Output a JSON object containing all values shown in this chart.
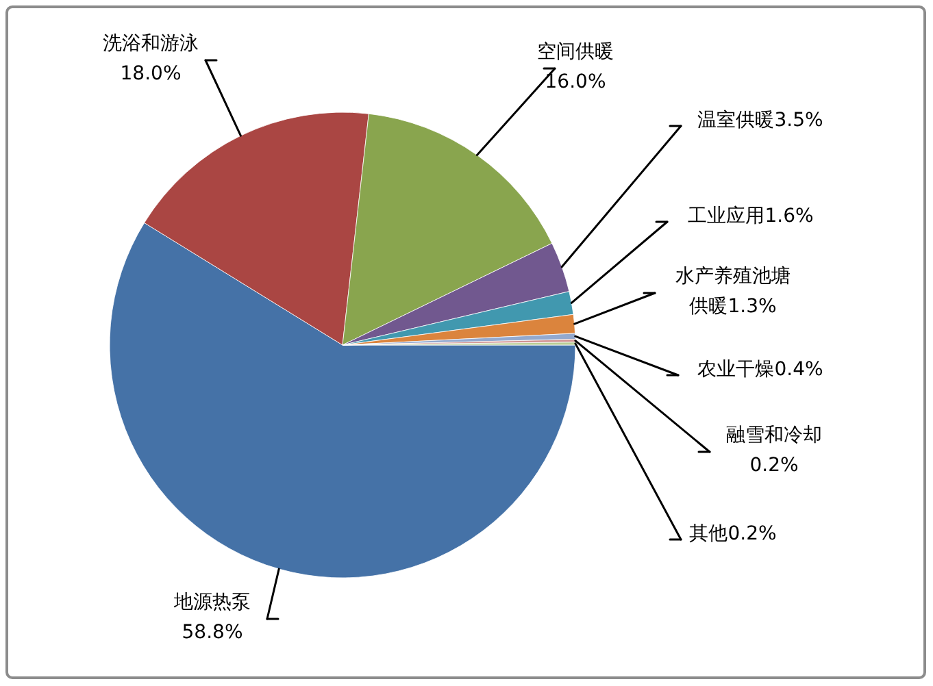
{
  "chart_data": {
    "type": "pie",
    "categories": [
      "地源热泵",
      "洗浴和游泳",
      "空间供暖",
      "温室供暖",
      "工业应用",
      "水产养殖池塘供暖",
      "农业干燥",
      "融雪和冷却",
      "其他"
    ],
    "values": [
      58.8,
      18.0,
      16.0,
      3.5,
      1.6,
      1.3,
      0.4,
      0.2,
      0.2
    ],
    "value_labels": [
      "58.8%",
      "18.0%",
      "16.0%",
      "3.5%",
      "1.6%",
      "1.3%",
      "0.4%",
      "0.2%",
      "0.2%"
    ],
    "colors": [
      "#4572a7",
      "#aa4643",
      "#89a54e",
      "#71588f",
      "#4198af",
      "#db843d",
      "#93a9cf",
      "#d19392",
      "#b9cd96"
    ]
  }
}
